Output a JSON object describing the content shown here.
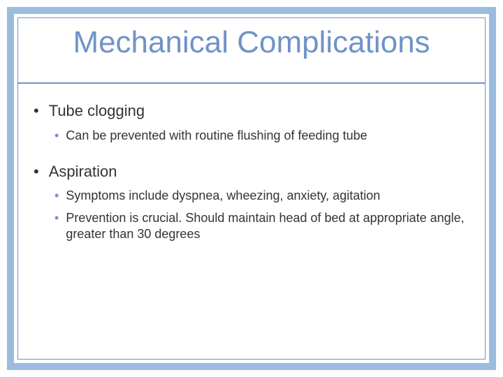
{
  "colors": {
    "outer_border": "#9bbce0",
    "inner_border": "#6f93c8",
    "title_color": "#6f93c8",
    "divider_color": "#6f93c8",
    "text_color": "#333333",
    "sub_bullet_color": "#6f93c8",
    "background": "#ffffff"
  },
  "title": "Mechanical Complications",
  "bullets": [
    {
      "text": "Tube clogging",
      "sub": [
        "Can be prevented with routine flushing of feeding tube"
      ]
    },
    {
      "text": "Aspiration",
      "sub": [
        "Symptoms include dyspnea, wheezing, anxiety, agitation",
        "Prevention is crucial.  Should maintain head of bed at appropriate angle, greater than 30 degrees"
      ]
    }
  ]
}
